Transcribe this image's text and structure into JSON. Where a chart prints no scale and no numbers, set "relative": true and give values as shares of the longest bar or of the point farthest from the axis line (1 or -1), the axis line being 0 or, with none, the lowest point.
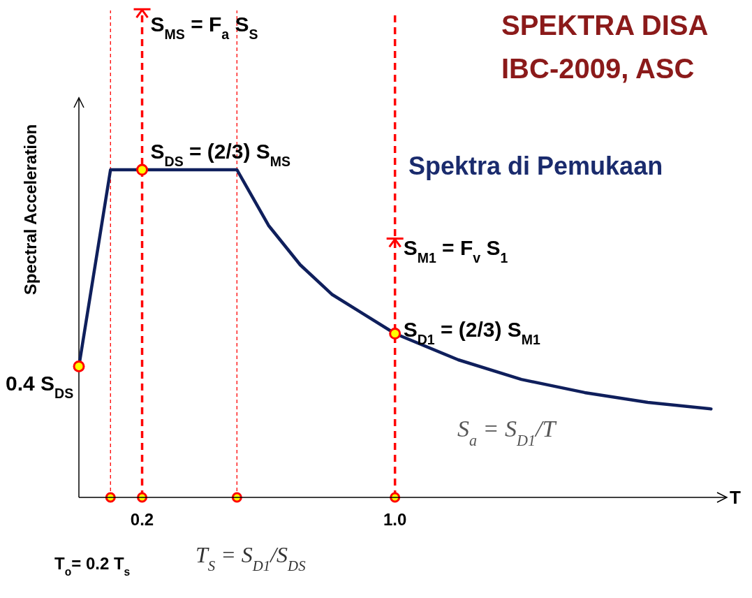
{
  "chart_data": {
    "type": "line",
    "title": "SPEKTRA DISA",
    "subtitle": "IBC-2009, ASC",
    "xlabel": "T",
    "ylabel": "Spectral Acceleration",
    "relative": true,
    "x": [
      0,
      0.1,
      0.2,
      0.5,
      0.6,
      0.7,
      0.8,
      0.9,
      1.0,
      1.2,
      1.4,
      1.6,
      1.8,
      2.0
    ],
    "series": [
      {
        "color": "#0f1f5c",
        "values": [
          0.4,
          1,
          1,
          1,
          0.83,
          0.71,
          0.62,
          0.56,
          0.5,
          0.42,
          0.36,
          0.32,
          0.29,
          0.27
        ]
      }
    ],
    "xlim": [
      0,
      2.05
    ],
    "xticks": [
      0.2,
      {
        "value": 1,
        "label": "1.0"
      }
    ],
    "ref_lines": [
      {
        "axis": "x",
        "value": 0.1,
        "label": null,
        "color": "#ff0000",
        "line_style": "dotted"
      },
      {
        "axis": "x",
        "value": 0.2,
        "label": null,
        "color": "#ff0000",
        "line_style": "dashed"
      },
      {
        "axis": "x",
        "value": 0.5,
        "label": null,
        "color": "#ff0000",
        "line_style": "dotted"
      },
      {
        "axis": "x",
        "value": 1,
        "label": null,
        "color": "#ff0000",
        "line_style": "dashed"
      }
    ],
    "annotations": [
      {
        "text": "S$_{MS}$ = F$_{a}$ S$_{S}$",
        "x": 0.2,
        "y": 1.49
      },
      {
        "text": "S$_{DS}$ = (2/3) S$_{MS}$",
        "x": 0.2,
        "y": 1
      },
      {
        "text": "S$_{M1}$ = F$_{v}$ S$_{1}$",
        "x": 1,
        "y": 0.79
      },
      {
        "text": "S$_{D1}$ = (2/3) S$_{M1}$",
        "x": 1,
        "y": 0.5
      },
      {
        "text": "0.4 S$_{DS}$",
        "x": 0,
        "y": 0.4
      },
      "Spektra di Pemukaan",
      "S$_{a}$ = S$_{D1}$/T",
      "T$_{o}$= 0.2 T$_{s}$",
      "T$_{S}$ = S$_{D1}$/S$_{DS}$"
    ]
  }
}
